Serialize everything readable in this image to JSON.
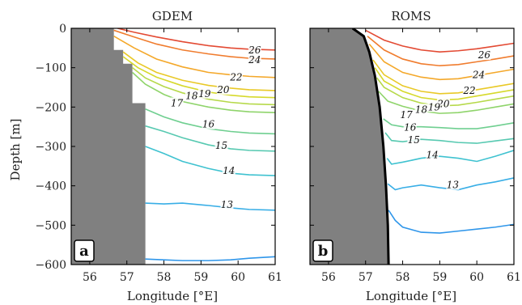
{
  "chart_data": [
    {
      "type": "line",
      "title": "GDEM",
      "panel_tag": "a",
      "xlabel": "Longitude [°E]",
      "ylabel": "Depth [m]",
      "xlim": [
        55.5,
        61
      ],
      "ylim": [
        -600,
        0
      ],
      "xticks": [
        "56",
        "57",
        "58",
        "59",
        "60",
        "61"
      ],
      "yticks": [
        "0",
        "−100",
        "−200",
        "−300",
        "−400",
        "−500",
        "−600"
      ],
      "land_steps": [
        [
          56.65,
          0
        ],
        [
          56.65,
          -55
        ],
        [
          56.9,
          -55
        ],
        [
          56.9,
          -90
        ],
        [
          57.15,
          -90
        ],
        [
          57.15,
          -190
        ],
        [
          57.5,
          -190
        ],
        [
          57.5,
          -600
        ]
      ],
      "series": [
        {
          "name": "26",
          "color": "#e34a33",
          "x": [
            56.75,
            57.2,
            57.8,
            58.5,
            59.2,
            59.8,
            60.3,
            61.0
          ],
          "y": [
            0,
            -10,
            -22,
            -34,
            -44,
            -50,
            -53,
            -55
          ],
          "label": {
            "text": "26",
            "x": 60.45,
            "y": -55
          }
        },
        {
          "name": "24",
          "color": "#f07c2e",
          "x": [
            56.65,
            57.2,
            57.8,
            58.5,
            59.2,
            59.8,
            60.3,
            61.0
          ],
          "y": [
            -5,
            -22,
            -40,
            -55,
            -65,
            -72,
            -76,
            -78
          ],
          "label": {
            "text": "24",
            "x": 60.45,
            "y": -80
          }
        },
        {
          "name": "22",
          "color": "#f4a82a",
          "x": [
            56.65,
            57.2,
            57.8,
            58.5,
            59.2,
            59.8,
            60.3,
            61.0
          ],
          "y": [
            -20,
            -50,
            -78,
            -98,
            -112,
            -118,
            -122,
            -125
          ],
          "label": {
            "text": "22",
            "x": 59.95,
            "y": -124
          }
        },
        {
          "name": "20",
          "color": "#e9c927",
          "x": [
            56.9,
            57.3,
            57.8,
            58.5,
            59.2,
            59.8,
            60.3,
            61.0
          ],
          "y": [
            -60,
            -88,
            -112,
            -132,
            -145,
            -152,
            -156,
            -158
          ],
          "label": {
            "text": "20",
            "x": 59.6,
            "y": -156
          }
        },
        {
          "name": "19",
          "color": "#d6d92c",
          "x": [
            56.9,
            57.3,
            57.8,
            58.5,
            59.2,
            59.8,
            60.3,
            61.0
          ],
          "y": [
            -72,
            -100,
            -124,
            -146,
            -162,
            -170,
            -174,
            -176
          ],
          "label": {
            "text": "19",
            "x": 59.1,
            "y": -166
          }
        },
        {
          "name": "18",
          "color": "#b6d94a",
          "x": [
            57.15,
            57.5,
            58.0,
            58.5,
            59.2,
            59.8,
            60.3,
            61.0
          ],
          "y": [
            -100,
            -126,
            -148,
            -164,
            -180,
            -188,
            -192,
            -194
          ],
          "label": {
            "text": "18",
            "x": 58.75,
            "y": -172
          }
        },
        {
          "name": "17",
          "color": "#8fd46b",
          "x": [
            57.15,
            57.5,
            58.0,
            58.5,
            59.2,
            59.8,
            60.3,
            61.0
          ],
          "y": [
            -112,
            -142,
            -168,
            -186,
            -200,
            -208,
            -212,
            -214
          ],
          "label": {
            "text": "17",
            "x": 58.35,
            "y": -190
          }
        },
        {
          "name": "16",
          "color": "#6fcf90",
          "x": [
            57.5,
            58.0,
            58.5,
            59.2,
            59.8,
            60.3,
            61.0
          ],
          "y": [
            -205,
            -225,
            -240,
            -255,
            -262,
            -266,
            -268
          ],
          "label": {
            "text": "16",
            "x": 59.2,
            "y": -244
          }
        },
        {
          "name": "15",
          "color": "#57c9b1",
          "x": [
            57.5,
            58.0,
            58.5,
            59.2,
            59.8,
            60.3,
            61.0
          ],
          "y": [
            -248,
            -262,
            -278,
            -296,
            -306,
            -310,
            -312
          ],
          "label": {
            "text": "15",
            "x": 59.55,
            "y": -298
          }
        },
        {
          "name": "14",
          "color": "#3fc2d0",
          "x": [
            57.5,
            58.0,
            58.5,
            59.2,
            59.8,
            60.3,
            61.0
          ],
          "y": [
            -300,
            -318,
            -338,
            -356,
            -368,
            -372,
            -374
          ],
          "label": {
            "text": "14",
            "x": 59.75,
            "y": -362
          }
        },
        {
          "name": "13",
          "color": "#38aee6",
          "x": [
            57.5,
            58.0,
            58.5,
            59.2,
            59.8,
            60.3,
            61.0
          ],
          "y": [
            -444,
            -446,
            -444,
            -450,
            -456,
            -460,
            -462
          ],
          "label": {
            "text": "13",
            "x": 59.7,
            "y": -448
          }
        },
        {
          "name": "",
          "color": "#2f96ea",
          "x": [
            57.5,
            58.0,
            58.5,
            59.2,
            59.8,
            60.3,
            61.0
          ],
          "y": [
            -586,
            -588,
            -590,
            -590,
            -588,
            -584,
            -580
          ]
        }
      ]
    },
    {
      "type": "line",
      "title": "ROMS",
      "panel_tag": "b",
      "xlabel": "Longitude [°E]",
      "ylabel": "",
      "xlim": [
        55.5,
        61
      ],
      "ylim": [
        -600,
        0
      ],
      "xticks": [
        "56",
        "57",
        "58",
        "59",
        "60",
        "61"
      ],
      "yticks": [],
      "land_curve": {
        "x": [
          56.65,
          56.95,
          57.1,
          57.25,
          57.38,
          57.48,
          57.55,
          57.6,
          57.62
        ],
        "y": [
          0,
          -20,
          -60,
          -120,
          -200,
          -300,
          -400,
          -500,
          -600
        ]
      },
      "series": [
        {
          "name": "26",
          "color": "#e34a33",
          "x": [
            57.0,
            57.5,
            58.0,
            58.5,
            59.0,
            59.5,
            60.0,
            60.5,
            61.0
          ],
          "y": [
            -5,
            -30,
            -45,
            -55,
            -60,
            -57,
            -52,
            -45,
            -38
          ],
          "label": {
            "text": "26",
            "x": 60.2,
            "y": -68
          }
        },
        {
          "name": "24",
          "color": "#f07c2e",
          "x": [
            57.05,
            57.5,
            58.0,
            58.5,
            59.0,
            59.5,
            60.0,
            60.5,
            61.0
          ],
          "y": [
            -20,
            -55,
            -78,
            -90,
            -95,
            -92,
            -85,
            -78,
            -70
          ],
          "label": {
            "text": "24",
            "x": 60.05,
            "y": -118
          }
        },
        {
          "name": "22",
          "color": "#f4a82a",
          "x": [
            57.1,
            57.5,
            58.0,
            58.5,
            59.0,
            59.5,
            60.0,
            60.5,
            61.0
          ],
          "y": [
            -40,
            -85,
            -112,
            -124,
            -130,
            -128,
            -120,
            -112,
            -104
          ],
          "label": {
            "text": "22",
            "x": 59.8,
            "y": -158
          }
        },
        {
          "name": "20",
          "color": "#e9c927",
          "x": [
            57.2,
            57.5,
            58.0,
            58.5,
            59.0,
            59.5,
            60.0,
            60.5,
            61.0
          ],
          "y": [
            -80,
            -118,
            -146,
            -160,
            -166,
            -164,
            -156,
            -148,
            -140
          ],
          "label": {
            "text": "20",
            "x": 59.1,
            "y": -192
          }
        },
        {
          "name": "19",
          "color": "#d6d92c",
          "x": [
            57.25,
            57.5,
            58.0,
            58.5,
            59.0,
            59.5,
            60.0,
            60.5,
            61.0
          ],
          "y": [
            -100,
            -134,
            -160,
            -176,
            -182,
            -180,
            -172,
            -164,
            -156
          ],
          "label": {
            "text": "19",
            "x": 58.85,
            "y": -200
          }
        },
        {
          "name": "18",
          "color": "#b6d94a",
          "x": [
            57.3,
            57.5,
            58.0,
            58.5,
            59.0,
            59.5,
            60.0,
            60.5,
            61.0
          ],
          "y": [
            -125,
            -150,
            -176,
            -190,
            -197,
            -195,
            -188,
            -180,
            -172
          ],
          "label": {
            "text": "18",
            "x": 58.5,
            "y": -206
          }
        },
        {
          "name": "17",
          "color": "#8fd46b",
          "x": [
            57.35,
            57.6,
            58.0,
            58.5,
            59.0,
            59.5,
            60.0,
            60.5,
            61.0
          ],
          "y": [
            -160,
            -185,
            -198,
            -210,
            -216,
            -214,
            -208,
            -200,
            -192
          ],
          "label": {
            "text": "17",
            "x": 58.1,
            "y": -220
          }
        },
        {
          "name": "16",
          "color": "#6fcf90",
          "x": [
            57.48,
            57.7,
            58.0,
            58.5,
            59.0,
            59.5,
            60.0,
            60.5,
            61.0
          ],
          "y": [
            -230,
            -245,
            -250,
            -250,
            -252,
            -255,
            -255,
            -248,
            -240
          ],
          "label": {
            "text": "16",
            "x": 58.2,
            "y": -252
          }
        },
        {
          "name": "15",
          "color": "#57c9b1",
          "x": [
            57.53,
            57.7,
            58.0,
            58.5,
            59.0,
            59.5,
            60.0,
            60.5,
            61.0
          ],
          "y": [
            -265,
            -285,
            -288,
            -282,
            -285,
            -290,
            -292,
            -286,
            -280
          ],
          "label": {
            "text": "15",
            "x": 58.3,
            "y": -284
          }
        },
        {
          "name": "14",
          "color": "#3fc2d0",
          "x": [
            57.58,
            57.7,
            58.0,
            58.5,
            59.0,
            59.5,
            60.0,
            60.5,
            61.0
          ],
          "y": [
            -330,
            -345,
            -340,
            -330,
            -325,
            -330,
            -338,
            -325,
            -310
          ],
          "label": {
            "text": "14",
            "x": 58.8,
            "y": -322
          }
        },
        {
          "name": "13",
          "color": "#38aee6",
          "x": [
            57.6,
            57.8,
            58.0,
            58.5,
            59.0,
            59.5,
            60.0,
            60.5,
            61.0
          ],
          "y": [
            -395,
            -410,
            -405,
            -398,
            -405,
            -410,
            -398,
            -390,
            -380
          ],
          "label": {
            "text": "13",
            "x": 59.35,
            "y": -398
          }
        },
        {
          "name": "",
          "color": "#2f96ea",
          "x": [
            57.62,
            57.8,
            58.0,
            58.5,
            59.0,
            59.5,
            60.0,
            60.5,
            61.0
          ],
          "y": [
            -462,
            -488,
            -505,
            -518,
            -520,
            -515,
            -510,
            -505,
            -498
          ]
        }
      ]
    }
  ]
}
